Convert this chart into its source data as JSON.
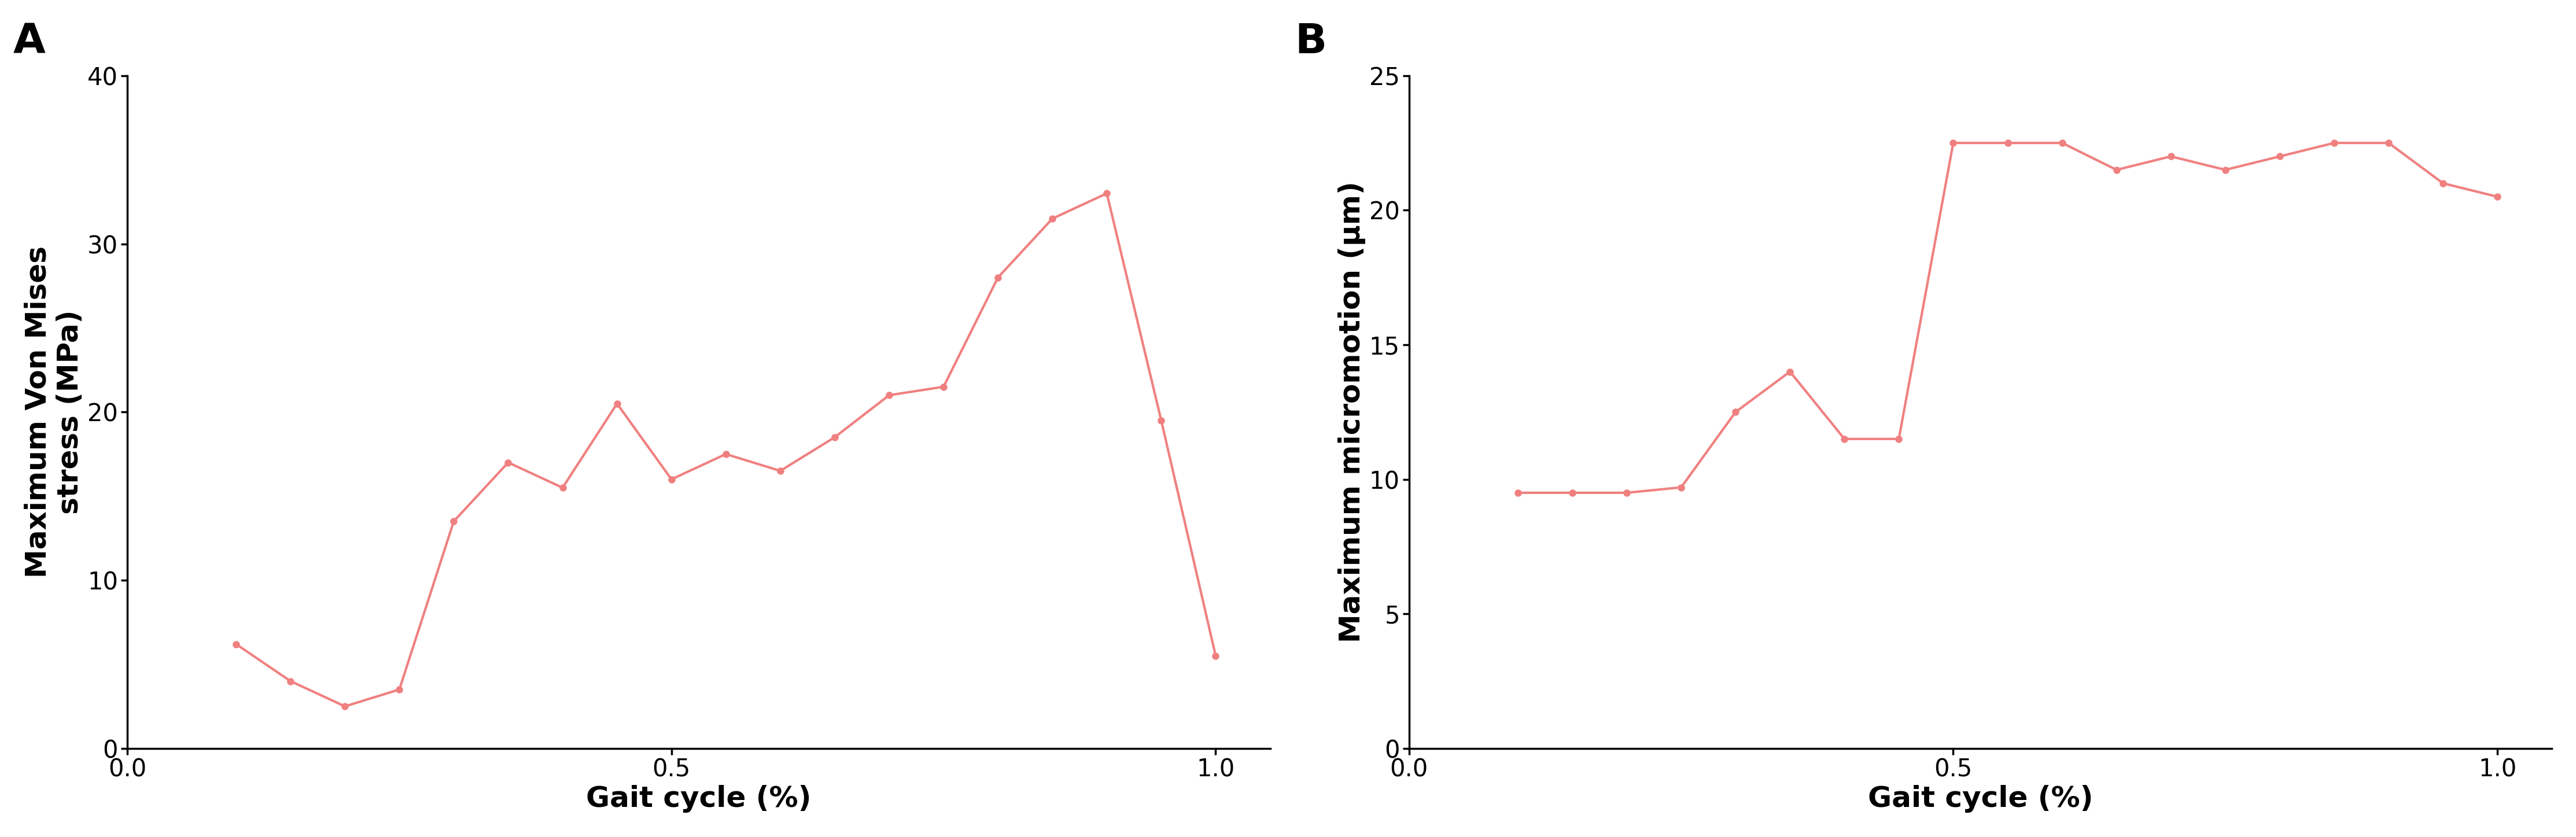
{
  "panel_A": {
    "x": [
      0.1,
      0.15,
      0.2,
      0.25,
      0.3,
      0.35,
      0.4,
      0.45,
      0.5,
      0.55,
      0.6,
      0.65,
      0.7,
      0.75,
      0.8,
      0.85,
      0.9,
      0.95,
      1.0
    ],
    "y": [
      6.2,
      4.0,
      2.5,
      3.5,
      13.5,
      17.0,
      15.5,
      20.5,
      16.0,
      17.5,
      16.5,
      18.5,
      21.0,
      21.5,
      28.0,
      31.5,
      33.0,
      19.5,
      5.5
    ],
    "ylabel": "Maximum Von Mises\nstress (MPa)",
    "xlabel": "Gait cycle (%)",
    "xlim": [
      0.0,
      1.05
    ],
    "ylim": [
      0,
      40
    ],
    "xticks": [
      0.0,
      0.5,
      1.0
    ],
    "xticklabels": [
      "0.0",
      "0.5",
      "1.0"
    ],
    "yticks": [
      0,
      10,
      20,
      30,
      40
    ],
    "label": "A"
  },
  "panel_B": {
    "x": [
      0.1,
      0.15,
      0.2,
      0.25,
      0.3,
      0.35,
      0.4,
      0.45,
      0.5,
      0.55,
      0.6,
      0.65,
      0.7,
      0.75,
      0.8,
      0.85,
      0.9,
      0.95,
      1.0
    ],
    "y": [
      9.5,
      9.5,
      9.5,
      9.7,
      12.5,
      14.0,
      11.5,
      11.5,
      22.5,
      22.5,
      22.5,
      21.5,
      22.0,
      21.5,
      22.0,
      22.5,
      22.5,
      21.0,
      20.5
    ],
    "ylabel": "Maximum micromotion (μm)",
    "xlabel": "Gait cycle (%)",
    "xlim": [
      0.0,
      1.05
    ],
    "ylim": [
      0,
      25
    ],
    "xticks": [
      0.0,
      0.5,
      1.0
    ],
    "xticklabels": [
      "0.0",
      "0.5",
      "1.0"
    ],
    "yticks": [
      0,
      5,
      10,
      15,
      20,
      25
    ],
    "label": "B"
  },
  "line_color": "#F08080",
  "marker": "o",
  "markersize": 8,
  "linewidth": 3.0,
  "background_color": "#ffffff",
  "label_fontsize": 36,
  "tick_fontsize": 30,
  "panel_label_fontsize": 52,
  "spine_linewidth": 2.5
}
